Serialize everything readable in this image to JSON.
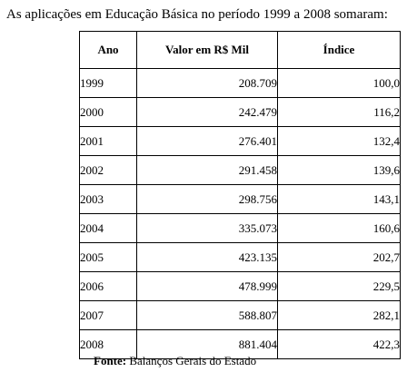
{
  "intro_text": "As aplicações em Educação Básica no período 1999 a 2008 somaram:",
  "table": {
    "headers": [
      "Ano",
      "Valor em R$ Mil",
      "Índice"
    ],
    "rows": [
      [
        "1999",
        "208.709",
        "100,0"
      ],
      [
        "2000",
        "242.479",
        "116,2"
      ],
      [
        "2001",
        "276.401",
        "132,4"
      ],
      [
        "2002",
        "291.458",
        "139,6"
      ],
      [
        "2003",
        "298.756",
        "143,1"
      ],
      [
        "2004",
        "335.073",
        "160,6"
      ],
      [
        "2005",
        "423.135",
        "202,7"
      ],
      [
        "2006",
        "478.999",
        "229,5"
      ],
      [
        "2007",
        "588.807",
        "282,1"
      ],
      [
        "2008",
        "881.404",
        "422,3"
      ]
    ]
  },
  "source": {
    "label": "Fonte:",
    "text": " Balanços Gerais do Estado"
  }
}
